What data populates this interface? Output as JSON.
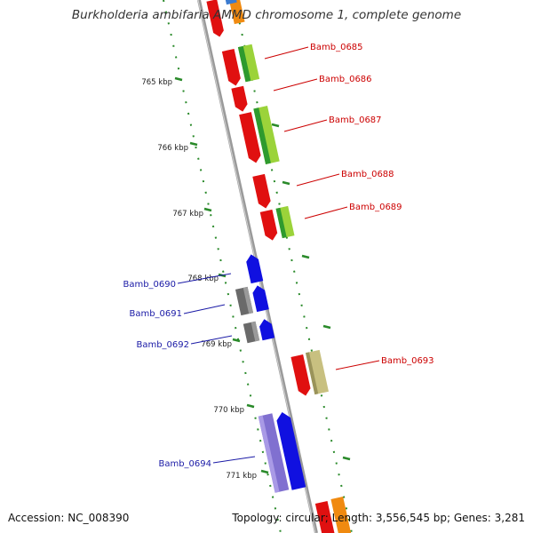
{
  "title": "Burkholderia ambifaria AMMD chromosome 1, complete genome",
  "footer": {
    "accession": "Accession: NC_008390",
    "summary": "Topology: circular; Length: 3,556,545 bp; Genes: 3,281"
  },
  "colors": {
    "backbone": "#888888",
    "tick": "#2a8a2a",
    "label_forward": "#cc0000",
    "label_reverse": "#1a1aa6"
  },
  "scale_labels": [
    "765 kbp",
    "766 kbp",
    "767 kbp",
    "768 kbp",
    "769 kbp",
    "770 kbp",
    "771 kbp"
  ],
  "gene_labels": {
    "forward": [
      "Bamb_0685",
      "Bamb_0686",
      "Bamb_0687",
      "Bamb_0688",
      "Bamb_0689",
      "Bamb_0693"
    ],
    "reverse": [
      "Bamb_0690",
      "Bamb_0691",
      "Bamb_0692",
      "Bamb_0694"
    ]
  }
}
